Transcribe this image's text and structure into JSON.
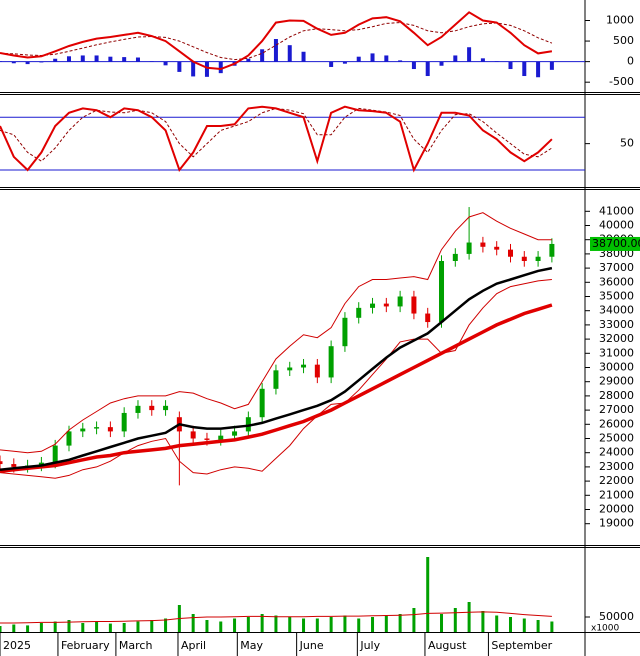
{
  "chart_data": [
    {
      "type": "macd",
      "ylim": [
        -690,
        1450
      ],
      "yticks": [
        1000,
        500,
        0,
        -500
      ],
      "series": [
        {
          "style": "bar",
          "color": "#1a1ad0",
          "values": [
            10,
            -40,
            -60,
            -20,
            70,
            130,
            150,
            150,
            120,
            110,
            100,
            10,
            -90,
            -250,
            -360,
            -370,
            -280,
            -100,
            70,
            300,
            550,
            400,
            240,
            0,
            -130,
            -50,
            120,
            200,
            150,
            30,
            -180,
            -350,
            -100,
            150,
            350,
            80,
            10,
            -180,
            -350,
            -380,
            -200
          ]
        },
        {
          "style": "dashed",
          "color": "#900000",
          "values": [
            200,
            190,
            160,
            150,
            180,
            250,
            330,
            410,
            480,
            540,
            600,
            610,
            590,
            500,
            360,
            220,
            100,
            50,
            80,
            200,
            400,
            600,
            750,
            800,
            780,
            750,
            780,
            850,
            930,
            950,
            880,
            750,
            700,
            750,
            850,
            920,
            940,
            880,
            750,
            580,
            450
          ]
        },
        {
          "style": "line",
          "color": "#e00000",
          "values": [
            210,
            150,
            100,
            130,
            250,
            380,
            480,
            560,
            600,
            650,
            700,
            620,
            500,
            250,
            0,
            -150,
            -180,
            -50,
            150,
            500,
            950,
            1000,
            990,
            800,
            650,
            700,
            900,
            1050,
            1080,
            980,
            700,
            400,
            600,
            900,
            1200,
            1000,
            950,
            700,
            400,
            200,
            250
          ]
        }
      ]
    },
    {
      "type": "oscillator",
      "ylim": [
        3,
        103
      ],
      "yticks": [
        50
      ],
      "levels": [
        80,
        20
      ],
      "level_color": "#1a1ad0",
      "series": [
        {
          "style": "dashed",
          "color": "#900000",
          "values": [
            65,
            60,
            40,
            30,
            45,
            65,
            80,
            88,
            86,
            85,
            88,
            85,
            75,
            50,
            35,
            50,
            65,
            70,
            75,
            85,
            90,
            88,
            84,
            60,
            60,
            80,
            90,
            88,
            86,
            82,
            55,
            40,
            65,
            83,
            84,
            75,
            62,
            50,
            38,
            35,
            45
          ]
        },
        {
          "style": "line",
          "color": "#e00000",
          "values": [
            70,
            35,
            20,
            40,
            70,
            85,
            90,
            88,
            80,
            90,
            88,
            80,
            65,
            20,
            40,
            70,
            70,
            72,
            90,
            92,
            90,
            85,
            80,
            30,
            85,
            92,
            88,
            87,
            85,
            75,
            20,
            50,
            85,
            85,
            82,
            65,
            55,
            40,
            30,
            40,
            55
          ]
        }
      ]
    },
    {
      "type": "candlestick",
      "ylim": [
        17500,
        42500
      ],
      "yticks": [
        19000,
        20000,
        21000,
        22000,
        23000,
        24000,
        25000,
        26000,
        27000,
        28000,
        29000,
        30000,
        31000,
        32000,
        33000,
        34000,
        35000,
        36000,
        37000,
        38000,
        39000,
        40000,
        41000
      ],
      "up_color": "#00a000",
      "down_color": "#e00000",
      "last_label": "38700.00",
      "last_label_color": "#00c000",
      "open": [
        23400,
        23200,
        23000,
        23100,
        23300,
        24500,
        25500,
        25700,
        25800,
        25500,
        26800,
        27300,
        27000,
        26500,
        25500,
        25000,
        24900,
        25200,
        25500,
        26500,
        28500,
        29800,
        30000,
        30200,
        29300,
        31500,
        33500,
        34200,
        34500,
        34300,
        35000,
        33800,
        33200,
        37500,
        38000,
        38800,
        38500,
        38300,
        37800,
        37500,
        37800
      ],
      "high": [
        23800,
        23600,
        23500,
        23700,
        24900,
        25900,
        26100,
        26200,
        26200,
        27200,
        27700,
        27700,
        27700,
        26900,
        25900,
        25400,
        25600,
        25900,
        26900,
        28900,
        30200,
        30400,
        30600,
        30600,
        31900,
        33900,
        34600,
        34900,
        34900,
        35400,
        35400,
        34200,
        37900,
        38400,
        41300,
        39200,
        38900,
        38700,
        38200,
        38200,
        39100
      ],
      "low": [
        22800,
        22600,
        22600,
        22700,
        22900,
        24100,
        25100,
        25300,
        25100,
        25100,
        26400,
        26600,
        26600,
        21700,
        24600,
        24500,
        24500,
        24800,
        25100,
        26100,
        28100,
        29400,
        29600,
        28900,
        28900,
        31100,
        33100,
        33800,
        33900,
        33900,
        33400,
        32800,
        32800,
        37100,
        37600,
        38100,
        37900,
        37400,
        37100,
        37100,
        37400
      ],
      "close": [
        23200,
        23000,
        23100,
        23300,
        24500,
        25500,
        25700,
        25800,
        25500,
        26800,
        27300,
        27000,
        27300,
        25500,
        25000,
        24900,
        25200,
        25500,
        26500,
        28500,
        29800,
        30000,
        30200,
        29300,
        31500,
        33500,
        34200,
        34500,
        34300,
        35000,
        33800,
        33200,
        37500,
        38000,
        38800,
        38500,
        38300,
        37800,
        37500,
        37800,
        38700
      ],
      "series": [
        {
          "style": "thin",
          "color": "#d00000",
          "values": [
            24200,
            24100,
            24000,
            24100,
            24600,
            25600,
            26300,
            26900,
            27500,
            27800,
            28000,
            28000,
            28000,
            28300,
            28200,
            27800,
            27500,
            27100,
            27400,
            29000,
            30600,
            31500,
            32300,
            32100,
            32800,
            34500,
            35700,
            36200,
            36200,
            36300,
            36400,
            36200,
            38300,
            39600,
            40600,
            40900,
            40300,
            39800,
            39400,
            39000,
            39000
          ]
        },
        {
          "style": "thin",
          "color": "#d00000",
          "values": [
            22600,
            22500,
            22400,
            22300,
            22200,
            22400,
            22800,
            23000,
            23400,
            24000,
            24500,
            24800,
            25000,
            23400,
            22600,
            22500,
            22800,
            23000,
            22900,
            22700,
            23600,
            24500,
            25700,
            26600,
            27400,
            27500,
            28400,
            29500,
            30600,
            31800,
            32000,
            32000,
            31000,
            31200,
            33000,
            34200,
            35200,
            35700,
            35900,
            36100,
            36200
          ]
        },
        {
          "style": "thick",
          "color": "#e00000",
          "values": [
            22700,
            22800,
            22900,
            23000,
            23100,
            23300,
            23500,
            23700,
            23800,
            24000,
            24100,
            24200,
            24300,
            24500,
            24600,
            24700,
            24800,
            24900,
            25100,
            25300,
            25600,
            25900,
            26200,
            26600,
            27000,
            27500,
            28000,
            28500,
            29000,
            29500,
            30000,
            30500,
            31000,
            31500,
            32000,
            32500,
            33000,
            33400,
            33800,
            34100,
            34400
          ]
        },
        {
          "style": "medium",
          "color": "#000000",
          "values": [
            22800,
            22900,
            23000,
            23100,
            23300,
            23500,
            23800,
            24100,
            24400,
            24700,
            25000,
            25200,
            25400,
            26000,
            25800,
            25700,
            25700,
            25800,
            25900,
            26100,
            26400,
            26700,
            27000,
            27300,
            27700,
            28300,
            29100,
            29900,
            30700,
            31400,
            31900,
            32400,
            33200,
            34000,
            34800,
            35400,
            35900,
            36200,
            36500,
            36800,
            37000
          ]
        }
      ]
    },
    {
      "type": "volume",
      "ylim": [
        0,
        280000
      ],
      "yticks": [
        50000
      ],
      "unit_label": "x1000",
      "color": "#00a000",
      "values": [
        20000,
        25000,
        22000,
        30000,
        35000,
        40000,
        30000,
        35000,
        28000,
        30000,
        35000,
        40000,
        45000,
        90000,
        60000,
        40000,
        35000,
        45000,
        50000,
        60000,
        55000,
        50000,
        45000,
        45000,
        50000,
        55000,
        45000,
        50000,
        55000,
        60000,
        80000,
        250000,
        60000,
        80000,
        100000,
        70000,
        55000,
        50000,
        45000,
        40000,
        35000
      ],
      "series": [
        {
          "style": "thin",
          "color": "#d00000",
          "values": [
            30000,
            30000,
            31000,
            32000,
            32000,
            33000,
            34000,
            35000,
            35000,
            36000,
            37000,
            38000,
            40000,
            45000,
            48000,
            50000,
            50000,
            51000,
            52000,
            52000,
            51000,
            51000,
            51000,
            52000,
            52000,
            53000,
            53000,
            54000,
            55000,
            56000,
            58000,
            62000,
            63000,
            64000,
            66000,
            67000,
            66000,
            62000,
            58000,
            55000,
            52000
          ]
        }
      ],
      "xlim": [
        0,
        42.4
      ],
      "xticks": [
        {
          "value": 0,
          "label": "2025"
        },
        {
          "value": 4.2,
          "label": "February"
        },
        {
          "value": 8.4,
          "label": "March"
        },
        {
          "value": 12.9,
          "label": "April"
        },
        {
          "value": 17.2,
          "label": "May"
        },
        {
          "value": 21.5,
          "label": "June"
        },
        {
          "value": 25.9,
          "label": "July"
        },
        {
          "value": 30.8,
          "label": "August"
        },
        {
          "value": 35.4,
          "label": "September"
        }
      ]
    }
  ]
}
